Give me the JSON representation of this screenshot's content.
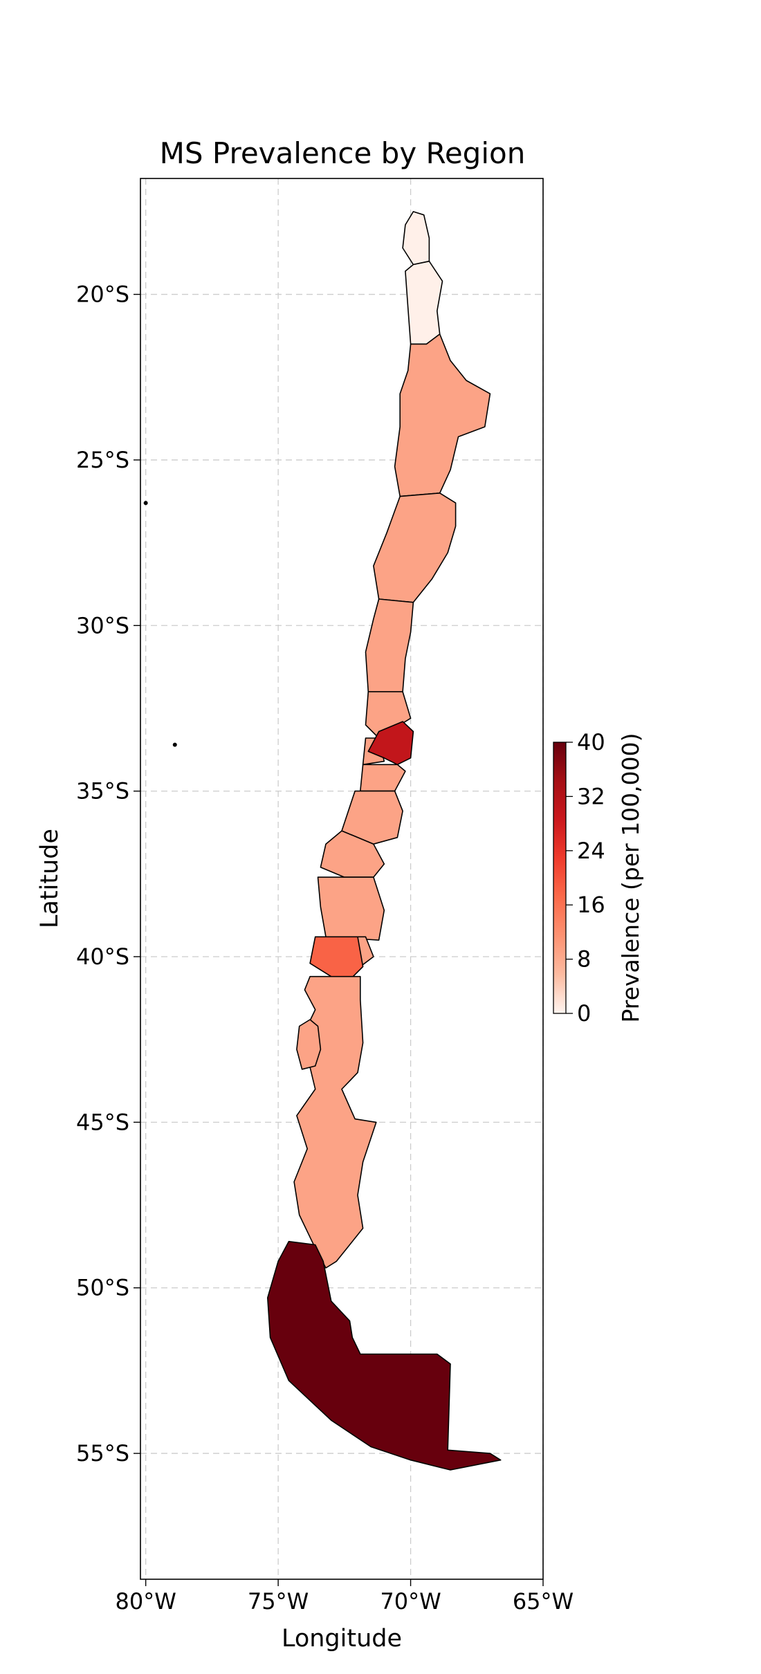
{
  "chart_data": {
    "type": "choropleth",
    "title": "MS Prevalence by Region",
    "xlabel": "Longitude",
    "ylabel": "Latitude",
    "xlim": [
      -80.2,
      -65
    ],
    "ylim": [
      -58.8,
      -16.5
    ],
    "x_ticks": [
      {
        "value": -80,
        "label": "80°W"
      },
      {
        "value": -75,
        "label": "75°W"
      },
      {
        "value": -70,
        "label": "70°W"
      },
      {
        "value": -65,
        "label": "65°W"
      }
    ],
    "y_ticks": [
      {
        "value": -20,
        "label": "20°S"
      },
      {
        "value": -25,
        "label": "25°S"
      },
      {
        "value": -30,
        "label": "30°S"
      },
      {
        "value": -35,
        "label": "35°S"
      },
      {
        "value": -40,
        "label": "40°S"
      },
      {
        "value": -45,
        "label": "45°S"
      },
      {
        "value": -50,
        "label": "50°S"
      },
      {
        "value": -55,
        "label": "55°S"
      }
    ],
    "grid": true,
    "colorbar": {
      "label": "Prevalence (per 100,000)",
      "range": [
        0,
        40
      ],
      "ticks": [
        "0",
        "8",
        "16",
        "24",
        "32",
        "40"
      ],
      "colormap": "Reds",
      "colors": [
        "#fff5f0",
        "#fcbba1",
        "#fc9272",
        "#fb6a4a",
        "#ef3b2c",
        "#cb181d",
        "#a50f15",
        "#67000d"
      ]
    },
    "regions": [
      {
        "value": 0.5
      },
      {
        "value": 0.5
      },
      {
        "value": 9
      },
      {
        "value": 9
      },
      {
        "value": 9
      },
      {
        "value": 9
      },
      {
        "value": 9
      },
      {
        "value": 30
      },
      {
        "value": 9
      },
      {
        "value": 9
      },
      {
        "value": 9
      },
      {
        "value": 9
      },
      {
        "value": 9
      },
      {
        "value": 18
      },
      {
        "value": 9
      },
      {
        "value": 9
      },
      {
        "value": 40
      }
    ]
  }
}
